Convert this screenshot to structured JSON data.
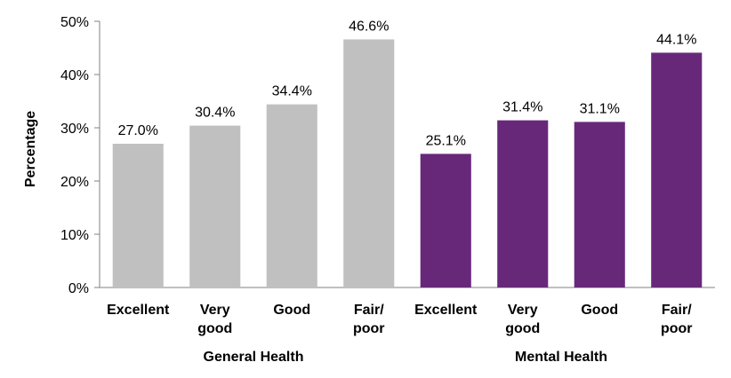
{
  "chart_data": {
    "type": "bar",
    "ylabel": "Percentage",
    "ylim": [
      0,
      50
    ],
    "yticks": [
      "0%",
      "10%",
      "20%",
      "30%",
      "40%",
      "50%"
    ],
    "grid": false,
    "groups": [
      {
        "name": "General Health",
        "color": "#c0c0c0",
        "categories": [
          [
            "Excellent"
          ],
          [
            "Very",
            "good"
          ],
          [
            "Good"
          ],
          [
            "Fair/",
            "poor"
          ]
        ],
        "values": [
          27.0,
          30.4,
          34.4,
          46.6
        ],
        "labels": [
          "27.0%",
          "30.4%",
          "34.4%",
          "46.6%"
        ]
      },
      {
        "name": "Mental Health",
        "color": "#68287a",
        "categories": [
          [
            "Excellent"
          ],
          [
            "Very",
            "good"
          ],
          [
            "Good"
          ],
          [
            "Fair/",
            "poor"
          ]
        ],
        "values": [
          25.1,
          31.4,
          31.1,
          44.1
        ],
        "labels": [
          "25.1%",
          "31.4%",
          "31.1%",
          "44.1%"
        ]
      }
    ]
  }
}
